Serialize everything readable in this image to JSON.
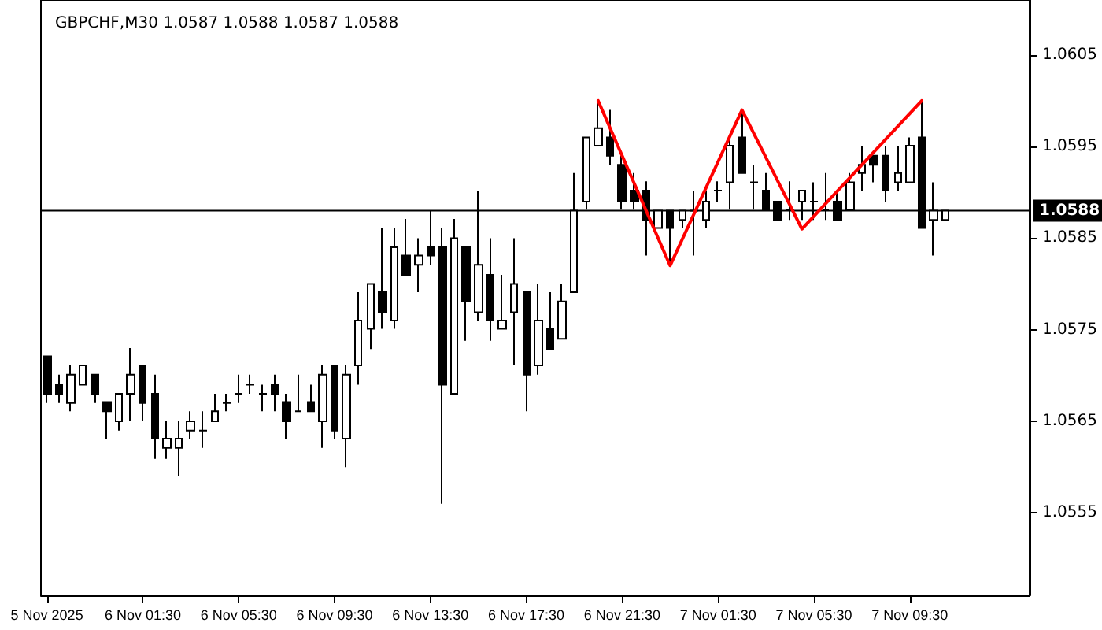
{
  "chart_data": {
    "type": "candlestick",
    "title": "GBPCHF,M30 1.0587 1.0588 1.0587 1.0588",
    "x": [
      "2025-11-05T21:30",
      "2025-11-05T22:00",
      "2025-11-05T22:30",
      "2025-11-05T23:00",
      "2025-11-05T23:30",
      "2025-11-06T00:00",
      "2025-11-06T00:30",
      "2025-11-06T01:00",
      "2025-11-06T01:30",
      "2025-11-06T02:00",
      "2025-11-06T02:30",
      "2025-11-06T03:00",
      "2025-11-06T03:30",
      "2025-11-06T04:00",
      "2025-11-06T04:30",
      "2025-11-06T05:00",
      "2025-11-06T05:30",
      "2025-11-06T06:00",
      "2025-11-06T06:30",
      "2025-11-06T07:00",
      "2025-11-06T07:30",
      "2025-11-06T08:00",
      "2025-11-06T08:30",
      "2025-11-06T09:00",
      "2025-11-06T09:30",
      "2025-11-06T10:00",
      "2025-11-06T10:30",
      "2025-11-06T11:00",
      "2025-11-06T11:30",
      "2025-11-06T12:00",
      "2025-11-06T12:30",
      "2025-11-06T13:00",
      "2025-11-06T13:30",
      "2025-11-06T14:00",
      "2025-11-06T14:30",
      "2025-11-06T15:00",
      "2025-11-06T15:30",
      "2025-11-06T16:00",
      "2025-11-06T16:30",
      "2025-11-06T17:00",
      "2025-11-06T17:30",
      "2025-11-06T18:00",
      "2025-11-06T18:30",
      "2025-11-06T19:00",
      "2025-11-06T19:30",
      "2025-11-06T20:00",
      "2025-11-06T20:30",
      "2025-11-06T21:00",
      "2025-11-06T21:30",
      "2025-11-06T22:00",
      "2025-11-06T22:30",
      "2025-11-06T23:00",
      "2025-11-06T23:30",
      "2025-11-07T00:00",
      "2025-11-07T00:30",
      "2025-11-07T01:00",
      "2025-11-07T01:30",
      "2025-11-07T02:00",
      "2025-11-07T02:30",
      "2025-11-07T03:00",
      "2025-11-07T03:30",
      "2025-11-07T04:00",
      "2025-11-07T04:30",
      "2025-11-07T05:00",
      "2025-11-07T05:30",
      "2025-11-07T06:00",
      "2025-11-07T06:30",
      "2025-11-07T07:00",
      "2025-11-07T07:30",
      "2025-11-07T08:00",
      "2025-11-07T08:30",
      "2025-11-07T09:00",
      "2025-11-07T09:30",
      "2025-11-07T10:00",
      "2025-11-07T10:30",
      "2025-11-07T11:00"
    ],
    "series": [
      {
        "type": "candlestick",
        "color": "#000000",
        "ohlc": [
          [
            1.05721,
            1.05721,
            1.0567,
            1.0568
          ],
          [
            1.0569,
            1.05701,
            1.0567,
            1.0568
          ],
          [
            1.0567,
            1.05711,
            1.05661,
            1.05701
          ],
          [
            1.0569,
            1.05711,
            1.0569,
            1.05711
          ],
          [
            1.05701,
            1.05701,
            1.0567,
            1.0568
          ],
          [
            1.05671,
            1.05671,
            1.05631,
            1.05661
          ],
          [
            1.0565,
            1.0568,
            1.0564,
            1.0568
          ],
          [
            1.0568,
            1.0573,
            1.0565,
            1.05701
          ],
          [
            1.05711,
            1.05711,
            1.0565,
            1.0567
          ],
          [
            1.0568,
            1.05701,
            1.05609,
            1.05631
          ],
          [
            1.05621,
            1.0565,
            1.05609,
            1.05631
          ],
          [
            1.05621,
            1.0565,
            1.0559,
            1.05631
          ],
          [
            1.0564,
            1.05661,
            1.05631,
            1.0565
          ],
          [
            1.0564,
            1.05661,
            1.05621,
            1.0564
          ],
          [
            1.0565,
            1.0568,
            1.0565,
            1.05661
          ],
          [
            1.0567,
            1.0568,
            1.05661,
            1.0567
          ],
          [
            1.0568,
            1.05701,
            1.0567,
            1.0568
          ],
          [
            1.0569,
            1.05701,
            1.0568,
            1.0569
          ],
          [
            1.0568,
            1.0569,
            1.05661,
            1.0568
          ],
          [
            1.0569,
            1.05701,
            1.05661,
            1.0568
          ],
          [
            1.05671,
            1.0568,
            1.05631,
            1.0565
          ],
          [
            1.05661,
            1.05701,
            1.05661,
            1.05661
          ],
          [
            1.05671,
            1.0569,
            1.05661,
            1.05661
          ],
          [
            1.0565,
            1.05711,
            1.05621,
            1.05701
          ],
          [
            1.05711,
            1.05711,
            1.05631,
            1.0564
          ],
          [
            1.05631,
            1.05711,
            1.056,
            1.05701
          ],
          [
            1.05711,
            1.05791,
            1.0569,
            1.0576
          ],
          [
            1.05751,
            1.058,
            1.05729,
            1.058
          ],
          [
            1.05791,
            1.05861,
            1.05751,
            1.05769
          ],
          [
            1.0576,
            1.05861,
            1.05751,
            1.0584
          ],
          [
            1.05831,
            1.05871,
            1.05809,
            1.05809
          ],
          [
            1.05821,
            1.0585,
            1.05791,
            1.05831
          ],
          [
            1.0584,
            1.0588,
            1.05821,
            1.05831
          ],
          [
            1.0584,
            1.05861,
            1.0556,
            1.0569
          ],
          [
            1.0568,
            1.05871,
            1.0568,
            1.0585
          ],
          [
            1.0584,
            1.0584,
            1.05738,
            1.05781
          ],
          [
            1.05769,
            1.05901,
            1.0576,
            1.05821
          ],
          [
            1.0581,
            1.0585,
            1.05738,
            1.0576
          ],
          [
            1.05751,
            1.0581,
            1.05751,
            1.0576
          ],
          [
            1.05769,
            1.0585,
            1.05711,
            1.058
          ],
          [
            1.05791,
            1.05791,
            1.05661,
            1.05701
          ],
          [
            1.05711,
            1.058,
            1.05701,
            1.0576
          ],
          [
            1.05751,
            1.05791,
            1.05729,
            1.05729
          ],
          [
            1.0574,
            1.058,
            1.0574,
            1.05781
          ],
          [
            1.05791,
            1.05921,
            1.05791,
            1.0588
          ],
          [
            1.0589,
            1.0596,
            1.05881,
            1.0596
          ],
          [
            1.05951,
            1.06,
            1.05951,
            1.0597
          ],
          [
            1.0596,
            1.0599,
            1.0593,
            1.0594
          ],
          [
            1.0593,
            1.0594,
            1.05881,
            1.0589
          ],
          [
            1.05902,
            1.05921,
            1.05881,
            1.0589
          ],
          [
            1.05902,
            1.05912,
            1.05831,
            1.0587
          ],
          [
            1.05861,
            1.0588,
            1.05861,
            1.0588
          ],
          [
            1.0588,
            1.0588,
            1.05821,
            1.05861
          ],
          [
            1.0587,
            1.0588,
            1.05861,
            1.0588
          ],
          [
            1.0588,
            1.05902,
            1.05831,
            1.0588
          ],
          [
            1.0587,
            1.05902,
            1.05861,
            1.0589
          ],
          [
            1.05902,
            1.05912,
            1.0589,
            1.05902
          ],
          [
            1.05911,
            1.0596,
            1.05881,
            1.05951
          ],
          [
            1.0596,
            1.0599,
            1.05921,
            1.05921
          ],
          [
            1.05911,
            1.0593,
            1.05881,
            1.05911
          ],
          [
            1.05902,
            1.05921,
            1.05881,
            1.05881
          ],
          [
            1.0589,
            1.0589,
            1.0587,
            1.0587
          ],
          [
            1.05881,
            1.05912,
            1.0587,
            1.05881
          ],
          [
            1.0589,
            1.05902,
            1.0587,
            1.05902
          ],
          [
            1.0589,
            1.05911,
            1.0587,
            1.0589
          ],
          [
            1.05881,
            1.05921,
            1.0587,
            1.05881
          ],
          [
            1.0589,
            1.05902,
            1.0587,
            1.0587
          ],
          [
            1.05881,
            1.05921,
            1.05881,
            1.05911
          ],
          [
            1.05921,
            1.05951,
            1.05902,
            1.0593
          ],
          [
            1.0594,
            1.0594,
            1.05911,
            1.0593
          ],
          [
            1.0594,
            1.05951,
            1.0589,
            1.05902
          ],
          [
            1.05911,
            1.05951,
            1.05902,
            1.05921
          ],
          [
            1.05911,
            1.0596,
            1.05911,
            1.05951
          ],
          [
            1.0596,
            1.06,
            1.05861,
            1.05861
          ],
          [
            1.0587,
            1.05911,
            1.05831,
            1.0588
          ],
          [
            1.0587,
            1.0588,
            1.0587,
            1.0588
          ]
        ]
      },
      {
        "type": "line",
        "color": "#ff0000",
        "x": [
          "2025-11-06T20:30",
          "2025-11-06T23:30",
          "2025-11-07T02:30",
          "2025-11-07T05:00",
          "2025-11-07T10:00"
        ],
        "values": [
          1.06,
          1.0582,
          1.0599,
          1.0586,
          1.06
        ]
      }
    ],
    "xlim": [
      "2025-11-05T21:15",
      "2025-11-07T14:30"
    ],
    "xticks": [
      {
        "value": "2025-11-05T21:30",
        "label": "5 Nov 2025"
      },
      {
        "value": "2025-11-06T01:30",
        "label": "6 Nov 01:30"
      },
      {
        "value": "2025-11-06T05:30",
        "label": "6 Nov 05:30"
      },
      {
        "value": "2025-11-06T09:30",
        "label": "6 Nov 09:30"
      },
      {
        "value": "2025-11-06T13:30",
        "label": "6 Nov 13:30"
      },
      {
        "value": "2025-11-06T17:30",
        "label": "6 Nov 17:30"
      },
      {
        "value": "2025-11-06T21:30",
        "label": "6 Nov 21:30"
      },
      {
        "value": "2025-11-07T01:30",
        "label": "7 Nov 01:30"
      },
      {
        "value": "2025-11-07T05:30",
        "label": "7 Nov 05:30"
      },
      {
        "value": "2025-11-07T09:30",
        "label": "7 Nov 09:30"
      }
    ],
    "ylim": [
      1.0546,
      1.0611
    ],
    "yticks": [
      1.0555,
      1.0565,
      1.0575,
      1.0585,
      1.0595,
      1.0605
    ],
    "ref_lines": [
      {
        "axis": "y",
        "value": 1.0588,
        "label": "1.0588",
        "color": "#000000"
      }
    ],
    "marker": "none",
    "line_style": "solid",
    "grid": false
  }
}
